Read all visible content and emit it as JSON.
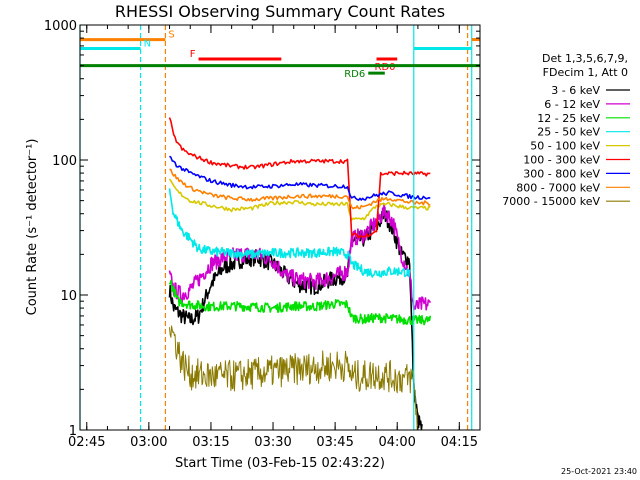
{
  "chart_data": {
    "type": "line",
    "title": "RHESSI Observing Summary Count Rates",
    "xlabel": "Start Time (03-Feb-15 02:43:22)",
    "ylabel": "Count Rate (s⁻¹ detector⁻¹)",
    "yscale": "log",
    "ylim": [
      1,
      1000
    ],
    "xlim": [
      "02:43:22",
      "04:20:00"
    ],
    "x_ticks": [
      "02:45",
      "03:00",
      "03:15",
      "03:30",
      "03:45",
      "04:00",
      "04:15"
    ],
    "y_ticks": [
      "1",
      "10",
      "100",
      "1000"
    ],
    "timestamp": "25-Oct-2021 23:40",
    "legend_title": [
      "Det 1,3,5,6,7,9,",
      "FDecim 1, Att 0"
    ],
    "legend_position": "right",
    "series": [
      {
        "name": "3 - 6 keV",
        "color": "#000000",
        "t": [
          "03:05",
          "03:06",
          "03:08",
          "03:10",
          "03:12",
          "03:15",
          "03:18",
          "03:22",
          "03:26",
          "03:30",
          "03:33",
          "03:36",
          "03:40",
          "03:44",
          "03:48",
          "03:49",
          "03:52",
          "03:55",
          "03:57",
          "03:59",
          "04:01",
          "04:03",
          "04:04",
          "04:05",
          "04:06"
        ],
        "v": [
          11,
          8,
          7,
          6.5,
          7,
          12,
          16,
          18,
          19,
          17,
          14,
          12,
          11.5,
          13,
          14,
          25,
          26,
          32,
          40,
          30,
          20,
          18,
          2,
          1.2,
          1
        ]
      },
      {
        "name": "6 - 12 keV",
        "color": "#d000d0",
        "t": [
          "03:05",
          "03:06",
          "03:08",
          "03:10",
          "03:12",
          "03:15",
          "03:18",
          "03:22",
          "03:26",
          "03:30",
          "03:33",
          "03:36",
          "03:40",
          "03:44",
          "03:48",
          "03:49",
          "03:52",
          "03:55",
          "03:57",
          "03:59",
          "04:01",
          "04:03",
          "04:04",
          "04:06",
          "04:08"
        ],
        "v": [
          14,
          11,
          10,
          11,
          13,
          17,
          19,
          20,
          20,
          18,
          14,
          13,
          12.5,
          13.5,
          15,
          26,
          28,
          35,
          42,
          35,
          20,
          14,
          8,
          8.5,
          8.5
        ]
      },
      {
        "name": "12 - 25 keV",
        "color": "#00e000",
        "t": [
          "03:05",
          "03:07",
          "03:10",
          "03:15",
          "03:20",
          "03:25",
          "03:30",
          "03:35",
          "03:40",
          "03:45",
          "03:48",
          "03:49",
          "03:52",
          "03:55",
          "03:58",
          "04:01",
          "04:04",
          "04:08"
        ],
        "v": [
          13,
          9,
          8.5,
          8.2,
          8.3,
          8.2,
          8.0,
          8.3,
          8.2,
          8.6,
          8.5,
          6.8,
          6.6,
          6.8,
          6.7,
          6.6,
          6.5,
          6.5
        ]
      },
      {
        "name": "25 - 50 keV",
        "color": "#00e8e8",
        "t": [
          "03:05",
          "03:06",
          "03:08",
          "03:10",
          "03:12",
          "03:15",
          "03:20",
          "03:25",
          "03:30",
          "03:35",
          "03:40",
          "03:45",
          "03:48",
          "03:49",
          "03:52",
          "03:55",
          "03:58",
          "04:01",
          "04:03"
        ],
        "v": [
          60,
          40,
          30,
          26,
          22,
          21,
          20.5,
          20,
          20.5,
          20.5,
          20.5,
          21,
          20,
          17,
          15,
          14.5,
          15,
          15,
          14.5
        ]
      },
      {
        "name": "50 - 100 keV",
        "color": "#d8c800",
        "t": [
          "03:05",
          "03:07",
          "03:10",
          "03:15",
          "03:20",
          "03:25",
          "03:30",
          "03:35",
          "03:40",
          "03:45",
          "03:48",
          "03:49",
          "03:52",
          "03:55",
          "03:58",
          "04:01",
          "04:04",
          "04:08"
        ],
        "v": [
          70,
          58,
          50,
          46,
          43,
          44,
          48,
          49,
          47,
          47,
          47,
          36,
          37,
          46,
          47,
          45,
          44,
          44
        ]
      },
      {
        "name": "100 - 300 keV",
        "color": "#ff0000",
        "t": [
          "03:05",
          "03:06",
          "03:08",
          "03:10",
          "03:15",
          "03:20",
          "03:25",
          "03:30",
          "03:35",
          "03:40",
          "03:45",
          "03:48",
          "03:49",
          "03:52",
          "03:55",
          "03:56",
          "04:01",
          "04:04",
          "04:08"
        ],
        "v": [
          210,
          150,
          120,
          110,
          96,
          90,
          88,
          93,
          98,
          98,
          98,
          98,
          28,
          27,
          30,
          79,
          80,
          79,
          79
        ]
      },
      {
        "name": "300 - 800 keV",
        "color": "#0000ff",
        "t": [
          "03:05",
          "03:07",
          "03:10",
          "03:15",
          "03:20",
          "03:25",
          "03:30",
          "03:35",
          "03:40",
          "03:45",
          "03:48",
          "03:49",
          "03:52",
          "03:55",
          "03:58",
          "04:01",
          "04:04",
          "04:08"
        ],
        "v": [
          105,
          90,
          80,
          70,
          65,
          63,
          64,
          66,
          65,
          64,
          64,
          52,
          52,
          55,
          57,
          55,
          53,
          53
        ]
      },
      {
        "name": "800 - 7000 keV",
        "color": "#ff8000",
        "t": [
          "03:05",
          "03:07",
          "03:10",
          "03:15",
          "03:20",
          "03:25",
          "03:30",
          "03:35",
          "03:40",
          "03:45",
          "03:48",
          "03:49",
          "03:52",
          "03:55",
          "03:58",
          "04:01",
          "04:04",
          "04:08"
        ],
        "v": [
          85,
          72,
          62,
          55,
          52,
          51,
          52,
          54,
          54,
          54,
          54,
          44,
          45,
          50,
          52,
          50,
          48,
          48
        ]
      },
      {
        "name": "7000 - 15000 keV",
        "color": "#8b7a00",
        "t": [
          "03:05",
          "03:06",
          "03:07",
          "03:08",
          "03:10",
          "03:15",
          "03:20",
          "03:25",
          "03:30",
          "03:35",
          "03:40",
          "03:45",
          "03:48",
          "03:49",
          "03:52",
          "03:55",
          "03:58",
          "04:01",
          "04:04",
          "04:05"
        ],
        "v": [
          6,
          5,
          4,
          3.2,
          2.6,
          2.5,
          2.5,
          2.6,
          2.7,
          2.8,
          2.9,
          3.0,
          3.0,
          2.5,
          2.5,
          2.6,
          2.5,
          2.4,
          2.4,
          1
        ]
      }
    ],
    "flag_bars": [
      {
        "label": "S",
        "color": "#ff8000",
        "start": "02:43:22",
        "end": "03:04",
        "level": 780
      },
      {
        "label": "N",
        "color": "#00e8e8",
        "start": "02:43:22",
        "end": "02:58",
        "level": 670
      },
      {
        "label": "F",
        "color": "#ff0000",
        "start": "03:12",
        "end": "03:32",
        "level": 560
      },
      {
        "label": "RD0",
        "color": "#ff0000",
        "start": "03:55",
        "end": "04:00",
        "level": 560
      },
      {
        "label": "RD6",
        "color": "#008000",
        "start": "03:53",
        "end": "03:57",
        "level": 440
      },
      {
        "label": "",
        "color": "#008000",
        "start": "02:43:22",
        "end": "04:20:00",
        "level": 500
      },
      {
        "label": "",
        "color": "#00e8e8",
        "start": "04:04",
        "end": "04:18",
        "level": 670
      },
      {
        "label": "",
        "color": "#ff8000",
        "start": "04:18",
        "end": "04:20:00",
        "level": 780
      }
    ],
    "vertical_markers": [
      {
        "time": "02:43:22",
        "color": "#00e8e8",
        "style": "solid"
      },
      {
        "time": "02:58",
        "color": "#00e8e8",
        "style": "dashed"
      },
      {
        "time": "03:04",
        "color": "#ff8000",
        "style": "dashed"
      },
      {
        "time": "04:04",
        "color": "#00e8e8",
        "style": "solid"
      },
      {
        "time": "04:17",
        "color": "#ff8000",
        "style": "dashed"
      },
      {
        "time": "04:18",
        "color": "#00e8e8",
        "style": "solid"
      }
    ]
  }
}
